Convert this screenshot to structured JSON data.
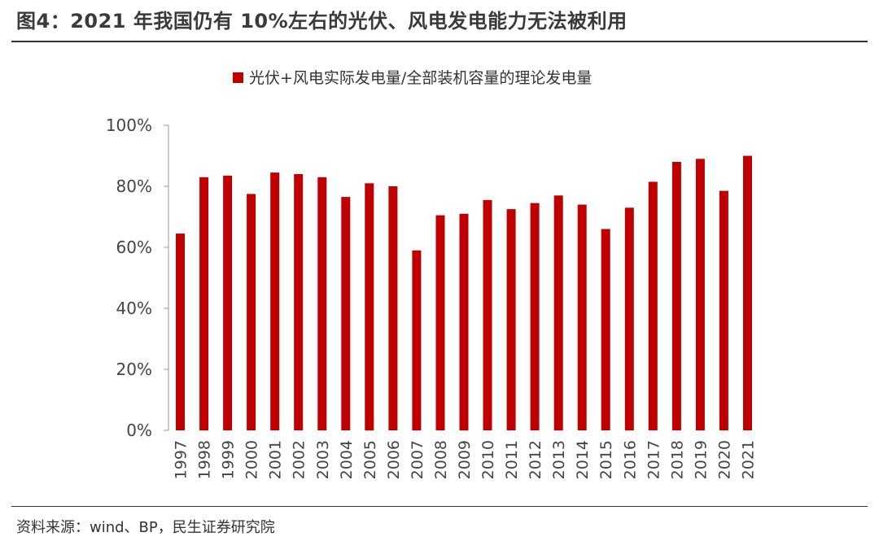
{
  "figure": {
    "title": "图4：2021 年我国仍有 10%左右的光伏、风电发电能力无法被利用",
    "source": "资料来源：wind、BP，民生证券研究院"
  },
  "chart_data": {
    "type": "bar",
    "title": "",
    "legend": [
      "光伏+风电实际发电量/全部装机容量的理论发电量"
    ],
    "legend_position": "top-center",
    "xlabel": "",
    "ylabel": "",
    "ylim": [
      0,
      100
    ],
    "y_ticks": [
      0,
      20,
      40,
      60,
      80,
      100
    ],
    "y_tick_labels": [
      "0%",
      "20%",
      "40%",
      "60%",
      "80%",
      "100%"
    ],
    "grid": false,
    "bar_color": "#c00000",
    "categories": [
      "1997",
      "1998",
      "1999",
      "2000",
      "2001",
      "2002",
      "2003",
      "2004",
      "2005",
      "2006",
      "2007",
      "2008",
      "2009",
      "2010",
      "2011",
      "2012",
      "2013",
      "2014",
      "2015",
      "2016",
      "2017",
      "2018",
      "2019",
      "2020",
      "2021"
    ],
    "series": [
      {
        "name": "光伏+风电实际发电量/全部装机容量的理论发电量",
        "values": [
          64.5,
          83,
          83.5,
          77.5,
          84.5,
          84,
          83,
          76.5,
          81,
          80,
          59,
          70.5,
          71,
          75.5,
          72.5,
          74.5,
          77,
          74,
          66,
          73,
          81.5,
          88,
          89,
          78.5,
          90
        ]
      }
    ]
  }
}
